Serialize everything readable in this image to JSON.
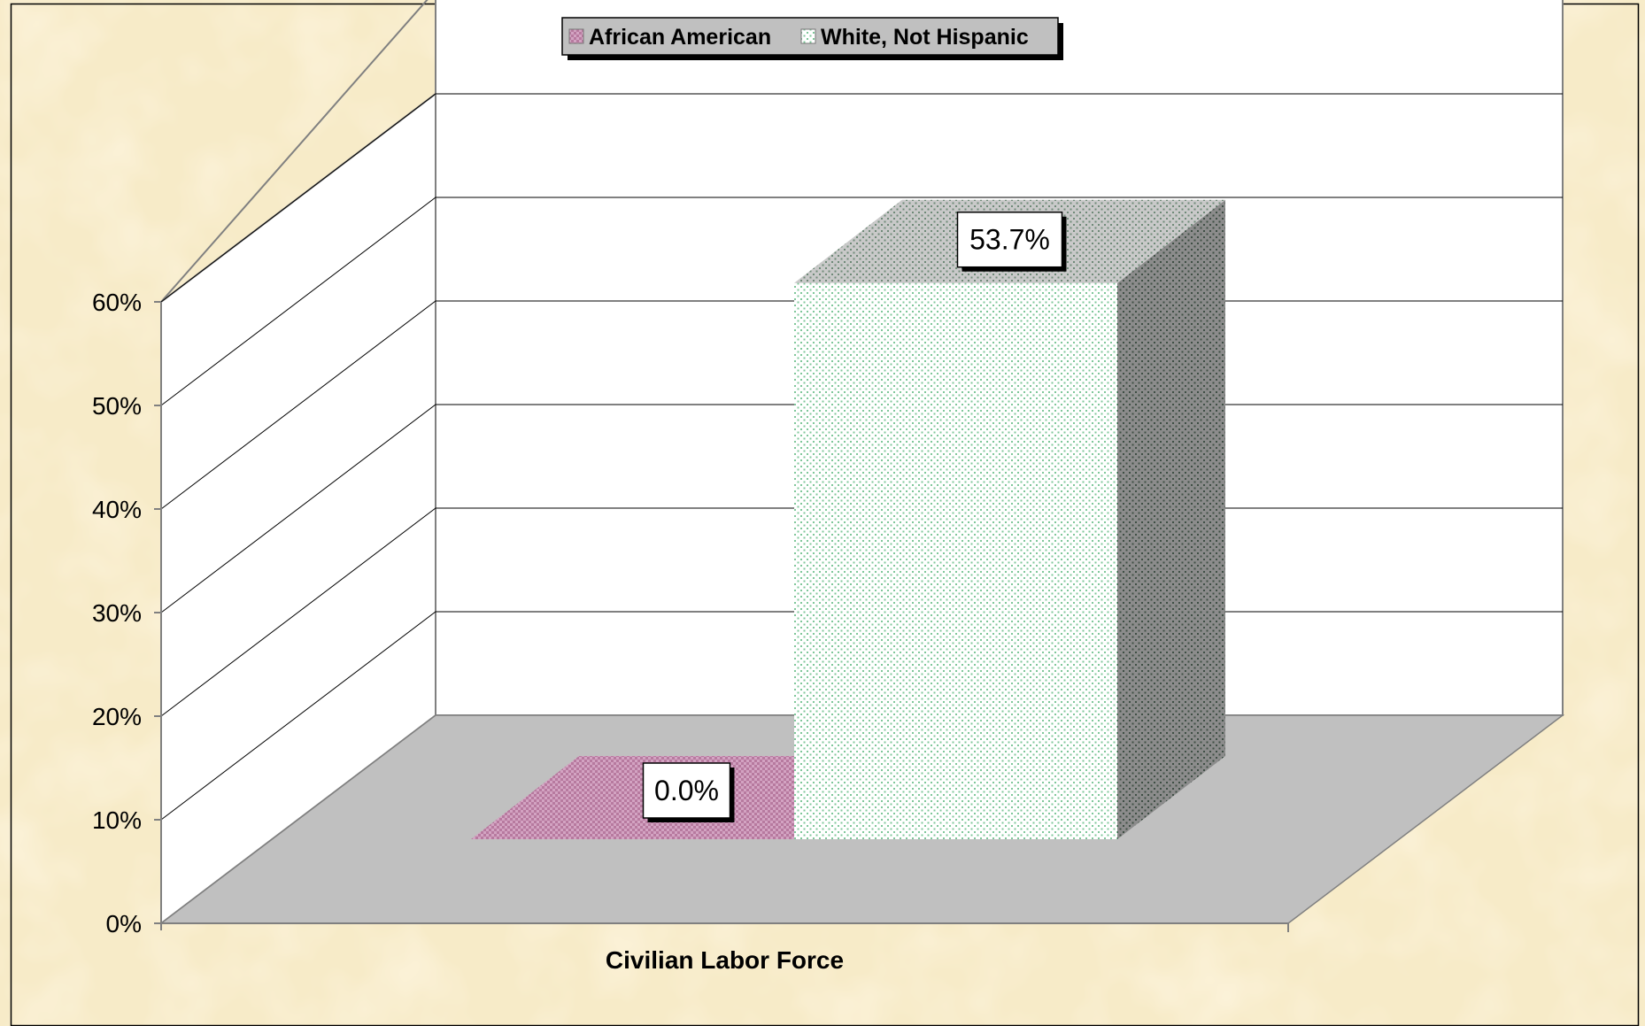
{
  "chart_data": {
    "type": "bar",
    "subtype": "3d-clustered-column",
    "categories": [
      "Civilian Labor Force"
    ],
    "series": [
      {
        "name": "African American",
        "values": [
          0.0
        ],
        "label": "0.0%",
        "color": "#c98fb4",
        "pattern": "checker"
      },
      {
        "name": "White, Not Hispanic",
        "values": [
          53.7
        ],
        "label": "53.7%",
        "color": "#7fc79a",
        "pattern": "dots"
      }
    ],
    "y_axis": {
      "ylim": [
        0,
        60
      ],
      "ticks": [
        0,
        10,
        20,
        30,
        40,
        50,
        60
      ],
      "tick_labels": [
        "0%",
        "10%",
        "20%",
        "30%",
        "40%",
        "50%",
        "60%"
      ]
    },
    "xlabel": "Civilian Labor Force",
    "grid": true,
    "legend": "top-center",
    "colors": {
      "background": "#f7ebc8",
      "floor": "#c0c0c0",
      "wall": "#ffffff",
      "legend_bg": "#c0c0c0"
    }
  }
}
